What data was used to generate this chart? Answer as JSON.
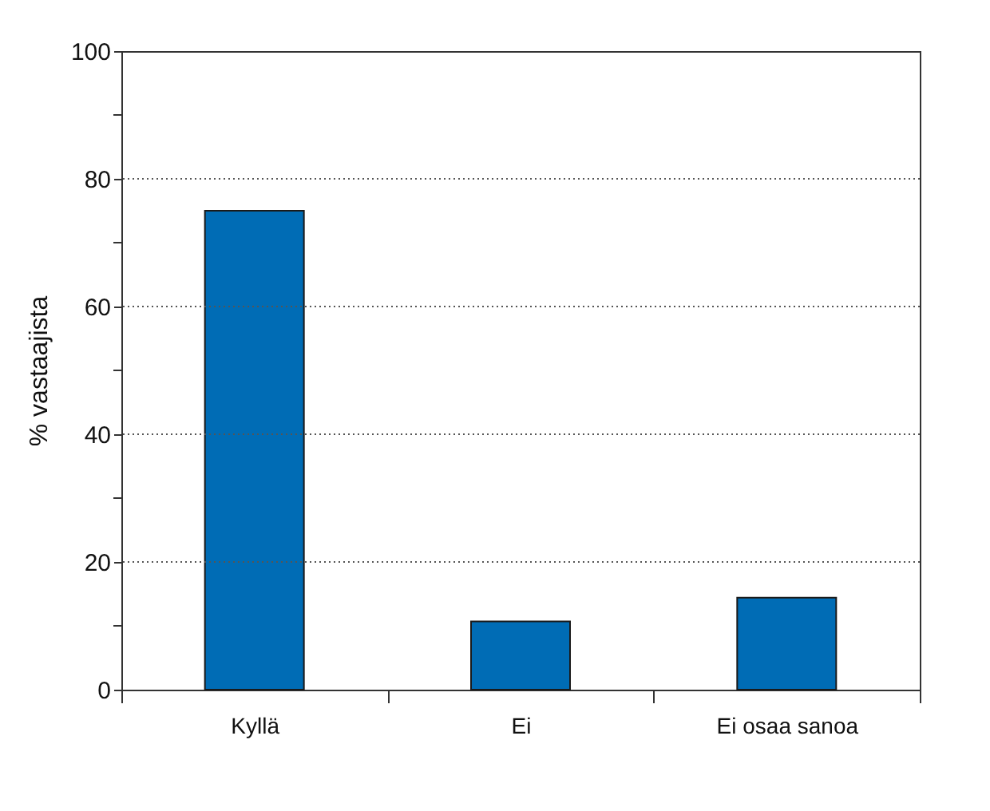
{
  "chart_data": {
    "type": "bar",
    "ylabel": "% vastaajista",
    "categories": [
      "Kyllä",
      "Ei",
      "Ei osaa sanoa"
    ],
    "values": [
      75.0,
      10.7,
      14.4
    ],
    "color": "#006cb5",
    "ylim": [
      0,
      100
    ],
    "yticks": [
      0,
      {
        "value": 10,
        "label": null
      },
      20,
      {
        "value": 30,
        "label": null
      },
      40,
      {
        "value": 50,
        "label": null
      },
      60,
      {
        "value": 70,
        "label": null
      },
      80,
      {
        "value": 90,
        "label": null
      },
      100
    ],
    "grid": "y"
  }
}
